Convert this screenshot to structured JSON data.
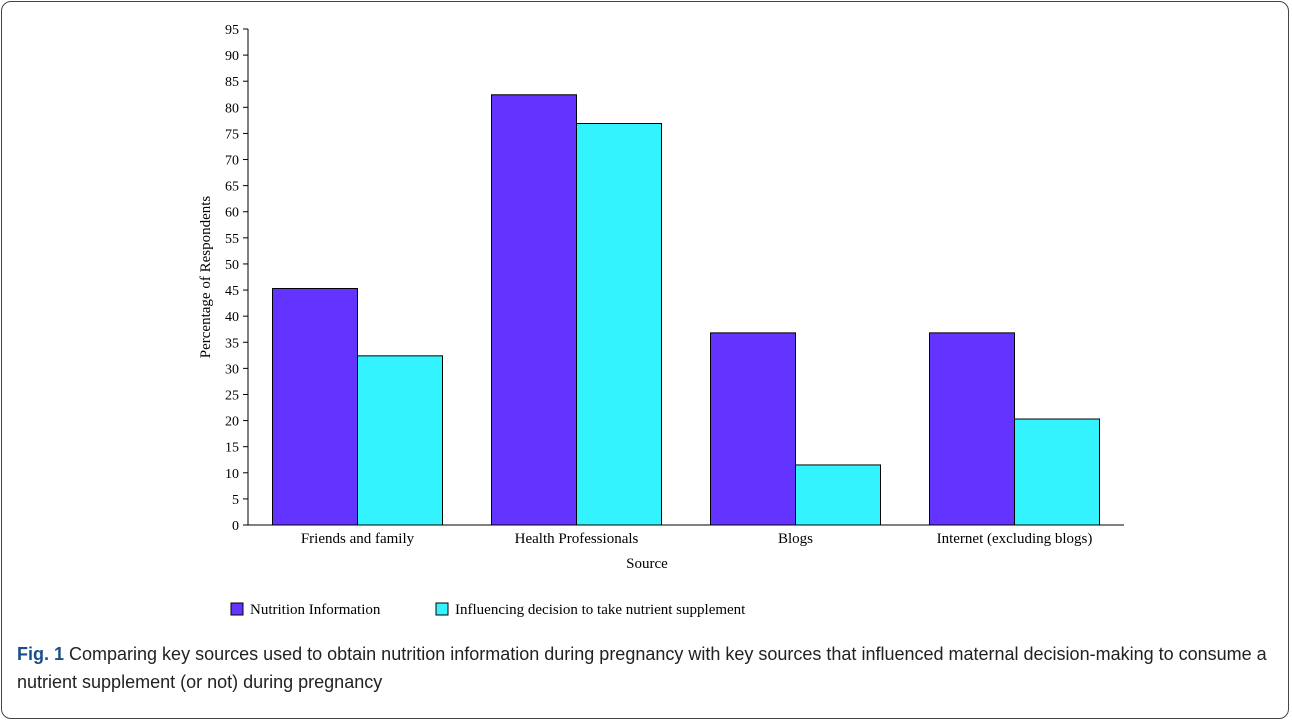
{
  "chart_data": {
    "type": "bar",
    "categories": [
      "Friends and family",
      "Health Professionals",
      "Blogs",
      "Internet (excluding blogs)"
    ],
    "series": [
      {
        "name": "Nutrition Information",
        "values": [
          45.3,
          82.4,
          36.8,
          36.8
        ],
        "color": "#6333ff"
      },
      {
        "name": "Influencing decision to take nutrient supplement",
        "values": [
          32.4,
          76.9,
          11.5,
          20.3
        ],
        "color": "#33f3ff"
      }
    ],
    "xlabel": "Source",
    "ylabel": "Percentage of Respondents",
    "ylim": [
      0,
      95
    ],
    "yticks": [
      0,
      5,
      10,
      15,
      20,
      25,
      30,
      35,
      40,
      45,
      50,
      55,
      60,
      65,
      70,
      75,
      80,
      85,
      90,
      95
    ],
    "grid": false,
    "legend_position": "bottom"
  },
  "caption": {
    "label": "Fig. 1",
    "text": " Comparing key sources used to obtain nutrition information during pregnancy with key sources that influenced maternal decision-making to consume a nutrient supplement (or not) during pregnancy"
  }
}
